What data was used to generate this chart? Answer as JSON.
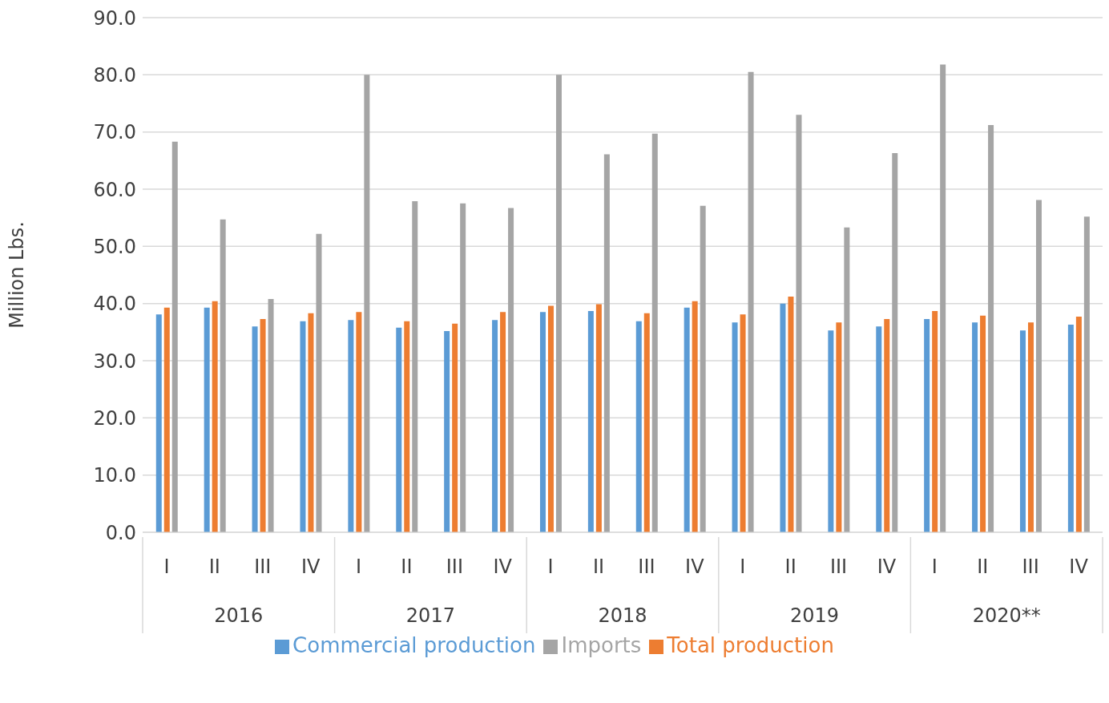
{
  "chart_data": {
    "type": "bar",
    "ylabel": "Million Lbs.",
    "categories": [
      "I",
      "II",
      "III",
      "IV",
      "I",
      "II",
      "III",
      "IV",
      "I",
      "II",
      "III",
      "IV",
      "I",
      "II",
      "III",
      "IV",
      "I",
      "II",
      "III",
      "IV"
    ],
    "annotations": [
      "2016",
      "2017",
      "2018",
      "2019",
      "2020**"
    ],
    "series": [
      {
        "name": "Commercial production",
        "color": "#5b9bd5",
        "values": [
          38.1,
          39.3,
          36.0,
          36.9,
          37.1,
          35.8,
          35.2,
          37.1,
          38.5,
          38.7,
          36.9,
          39.3,
          36.7,
          40.0,
          35.3,
          36.0,
          37.3,
          36.7,
          35.3,
          36.3
        ]
      },
      {
        "name": "Total production",
        "color": "#ed7d31",
        "values": [
          39.3,
          40.4,
          37.3,
          38.3,
          38.5,
          36.9,
          36.5,
          38.5,
          39.6,
          39.9,
          38.3,
          40.4,
          38.1,
          41.2,
          36.7,
          37.3,
          38.7,
          37.9,
          36.7,
          37.7
        ]
      },
      {
        "name": "Imports",
        "color": "#a5a5a5",
        "values": [
          68.3,
          54.7,
          40.8,
          52.2,
          80.0,
          57.9,
          57.5,
          56.7,
          80.0,
          66.1,
          69.7,
          57.1,
          80.5,
          73.0,
          53.3,
          66.3,
          81.8,
          71.2,
          58.1,
          55.2
        ]
      }
    ],
    "ylim": [
      0,
      90
    ],
    "yticks": [
      {
        "value": 0,
        "label": "0.0"
      },
      {
        "value": 10,
        "label": "10.0"
      },
      {
        "value": 20,
        "label": "20.0"
      },
      {
        "value": 30,
        "label": "30.0"
      },
      {
        "value": 40,
        "label": "40.0"
      },
      {
        "value": 50,
        "label": "50.0"
      },
      {
        "value": 60,
        "label": "60.0"
      },
      {
        "value": 70,
        "label": "70.0"
      },
      {
        "value": 80,
        "label": "80.0"
      },
      {
        "value": 90,
        "label": "90.0"
      }
    ],
    "grid": "y",
    "legend": "bottom"
  }
}
